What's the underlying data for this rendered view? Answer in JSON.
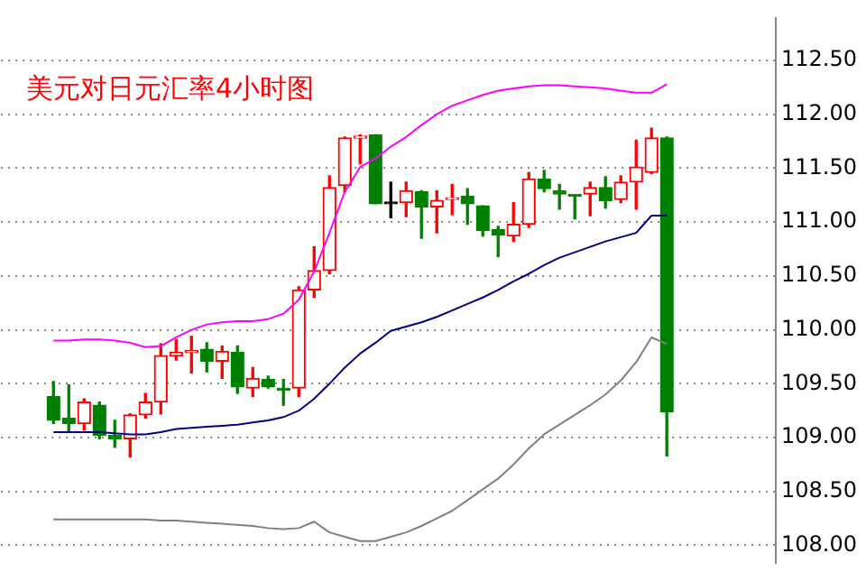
{
  "chart_data": {
    "type": "candlestick",
    "title": "美元对日元汇率4小时图",
    "categories": [
      null,
      null,
      null,
      null,
      null,
      null,
      null,
      null,
      null,
      null,
      null,
      null,
      null,
      null,
      null,
      null,
      null,
      null,
      null,
      null,
      null,
      null,
      null,
      null,
      null,
      null,
      null,
      null,
      null,
      null,
      null,
      null,
      null,
      null,
      null,
      null,
      null,
      null,
      null,
      null,
      null
    ],
    "ohlc": [
      [
        109.38,
        109.52,
        109.13,
        109.16
      ],
      [
        109.18,
        109.49,
        109.05,
        109.13
      ],
      [
        109.13,
        109.36,
        109.07,
        109.33
      ],
      [
        109.3,
        109.33,
        108.99,
        109.02
      ],
      [
        109.02,
        109.16,
        108.91,
        108.99
      ],
      [
        108.99,
        109.22,
        108.82,
        109.21
      ],
      [
        109.21,
        109.41,
        109.18,
        109.33
      ],
      [
        109.33,
        109.87,
        109.22,
        109.76
      ],
      [
        109.76,
        109.91,
        109.72,
        109.79
      ],
      [
        109.79,
        109.94,
        109.6,
        109.8
      ],
      [
        109.82,
        109.88,
        109.61,
        109.71
      ],
      [
        109.71,
        109.85,
        109.55,
        109.8
      ],
      [
        109.79,
        109.85,
        109.41,
        109.47
      ],
      [
        109.46,
        109.65,
        109.38,
        109.55
      ],
      [
        109.54,
        109.57,
        109.46,
        109.47
      ],
      [
        109.45,
        109.54,
        109.3,
        109.44
      ],
      [
        109.46,
        110.4,
        109.38,
        110.37
      ],
      [
        110.37,
        110.77,
        110.3,
        110.55
      ],
      [
        110.55,
        111.43,
        110.52,
        111.32
      ],
      [
        111.34,
        111.79,
        111.28,
        111.78
      ],
      [
        111.78,
        111.81,
        111.54,
        111.79
      ],
      [
        111.81,
        111.81,
        111.17,
        111.17
      ],
      [
        111.17,
        111.37,
        111.04,
        111.17
      ],
      [
        111.18,
        111.37,
        111.05,
        111.29
      ],
      [
        111.28,
        111.29,
        110.85,
        111.14
      ],
      [
        111.14,
        111.29,
        110.9,
        111.2
      ],
      [
        111.21,
        111.35,
        111.07,
        111.22
      ],
      [
        111.24,
        111.31,
        110.98,
        111.17
      ],
      [
        111.15,
        111.15,
        110.87,
        110.92
      ],
      [
        110.93,
        110.96,
        110.68,
        110.88
      ],
      [
        110.87,
        111.18,
        110.82,
        110.98
      ],
      [
        110.98,
        111.46,
        110.95,
        111.4
      ],
      [
        111.4,
        111.48,
        111.28,
        111.31
      ],
      [
        111.29,
        111.35,
        111.12,
        111.26
      ],
      [
        111.25,
        111.25,
        111.03,
        111.24
      ],
      [
        111.26,
        111.37,
        111.06,
        111.32
      ],
      [
        111.32,
        111.42,
        111.13,
        111.2
      ],
      [
        111.21,
        111.43,
        111.18,
        111.37
      ],
      [
        111.37,
        111.76,
        111.12,
        111.51
      ],
      [
        111.46,
        111.87,
        111.45,
        111.78
      ],
      [
        111.78,
        111.79,
        108.83,
        109.24
      ]
    ],
    "colors": [
      "#008000",
      "#008000",
      "#ff0000",
      "#008000",
      "#008000",
      "#ff0000",
      "#ff0000",
      "#ff0000",
      "#ff0000",
      "#ff0000",
      "#008000",
      "#ff0000",
      "#008000",
      "#ff0000",
      "#008000",
      "#008000",
      "#ff0000",
      "#ff0000",
      "#ff0000",
      "#ff0000",
      "#ff0000",
      "#008000",
      "#000000",
      "#ff0000",
      "#008000",
      "#ff0000",
      "#ff0000",
      "#008000",
      "#008000",
      "#008000",
      "#ff0000",
      "#ff0000",
      "#008000",
      "#008000",
      "#008000",
      "#ff0000",
      "#008000",
      "#ff0000",
      "#ff0000",
      "#ff0000",
      "#008000"
    ],
    "series": [
      {
        "type": "line",
        "color": "#ff00ff",
        "values": [
          109.9,
          109.9,
          109.91,
          109.91,
          109.9,
          109.88,
          109.84,
          109.85,
          109.93,
          110.0,
          110.05,
          110.07,
          110.08,
          110.08,
          110.1,
          110.15,
          110.28,
          110.54,
          110.9,
          111.28,
          111.51,
          111.59,
          111.7,
          111.79,
          111.9,
          112.0,
          112.08,
          112.13,
          112.18,
          112.22,
          112.24,
          112.26,
          112.27,
          112.27,
          112.26,
          112.25,
          112.24,
          112.22,
          112.2,
          112.2,
          112.28
        ]
      },
      {
        "type": "line",
        "color": "#000080",
        "values": [
          109.05,
          109.05,
          109.05,
          109.05,
          109.04,
          109.03,
          109.03,
          109.05,
          109.08,
          109.09,
          109.1,
          109.11,
          109.12,
          109.14,
          109.16,
          109.19,
          109.25,
          109.36,
          109.5,
          109.65,
          109.78,
          109.88,
          109.99,
          110.03,
          110.07,
          110.12,
          110.18,
          110.24,
          110.3,
          110.37,
          110.45,
          110.52,
          110.6,
          110.67,
          110.72,
          110.77,
          110.82,
          110.86,
          110.9,
          111.06,
          111.06
        ]
      },
      {
        "type": "line",
        "color": "#808080",
        "values": [
          108.24,
          108.24,
          108.24,
          108.24,
          108.24,
          108.24,
          108.24,
          108.23,
          108.23,
          108.22,
          108.21,
          108.2,
          108.19,
          108.18,
          108.16,
          108.15,
          108.16,
          108.22,
          108.12,
          108.08,
          108.04,
          108.04,
          108.08,
          108.12,
          108.18,
          108.25,
          108.32,
          108.42,
          108.52,
          108.62,
          108.75,
          108.9,
          109.03,
          109.12,
          109.21,
          109.3,
          109.4,
          109.53,
          109.7,
          109.93,
          109.87
        ]
      }
    ],
    "ylim": [
      107.84,
      112.89
    ],
    "yticks": [
      {
        "value": 108,
        "label": "108.00"
      },
      {
        "value": 108.5,
        "label": "108.50"
      },
      {
        "value": 109,
        "label": "109.00"
      },
      {
        "value": 109.5,
        "label": "109.50"
      },
      {
        "value": 110,
        "label": "110.00"
      },
      {
        "value": 110.5,
        "label": "110.50"
      },
      {
        "value": 111,
        "label": "111.00"
      },
      {
        "value": 111.5,
        "label": "111.50"
      },
      {
        "value": 112,
        "label": "112.00"
      },
      {
        "value": 112.5,
        "label": "112.50"
      }
    ],
    "grid": "y",
    "tick_labels": "y"
  }
}
